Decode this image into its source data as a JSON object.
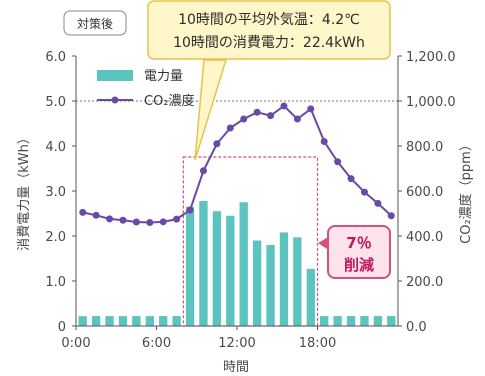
{
  "period_label": "対策後",
  "callout": {
    "line1": "10時間の平均外気温：4.2℃",
    "line2": "10時間の消費電力：22.4kWh"
  },
  "reduction": {
    "line1": "7％",
    "line2": "削減"
  },
  "colors": {
    "bar": "#5bc4bf",
    "line": "#6a4aa6",
    "highlight": "#d4517a",
    "callout_fill": "#fff6c9",
    "callout_border": "#e7c34b",
    "reduction_fill": "#fde4ec",
    "reduction_border": "#d4517a",
    "axis": "#555555",
    "refline": "#777777"
  },
  "chart_data": {
    "type": "bar+line",
    "xlabel": "時間",
    "ylabel_left": "消費電力量（kWh）",
    "ylabel_right": "CO₂濃度（ppm）",
    "ylim_left": [
      0,
      6.0
    ],
    "ylim_right": [
      0,
      1200
    ],
    "left_ticks": [
      "0",
      "1.0",
      "2.0",
      "3.0",
      "4.0",
      "5.0",
      "6.0"
    ],
    "right_ticks": [
      "0.0",
      "200.0",
      "400.0",
      "600.0",
      "800.0",
      "1,000.0",
      "1,200.0"
    ],
    "x_tick_labels": [
      "0:00",
      "6:00",
      "12:00",
      "18:00"
    ],
    "x_tick_hours": [
      0,
      6,
      12,
      18
    ],
    "x_range": [
      0,
      24
    ],
    "reference_line_right": 1000,
    "highlight_range_hours": [
      8,
      18
    ],
    "legend": [
      "電力量",
      "CO₂濃度"
    ],
    "series": [
      {
        "name": "電力量",
        "kind": "bar",
        "axis": "left",
        "hours": [
          0,
          1,
          2,
          3,
          4,
          5,
          6,
          7,
          8,
          9,
          10,
          11,
          12,
          13,
          14,
          15,
          16,
          17,
          18,
          19,
          20,
          21,
          22,
          23
        ],
        "values": [
          0.22,
          0.22,
          0.22,
          0.22,
          0.22,
          0.22,
          0.22,
          0.22,
          2.65,
          2.78,
          2.55,
          2.45,
          2.75,
          1.9,
          1.8,
          2.08,
          1.97,
          1.27,
          0.22,
          0.22,
          0.22,
          0.22,
          0.22,
          0.22
        ]
      },
      {
        "name": "CO₂濃度",
        "kind": "line",
        "axis": "right",
        "hours": [
          0.5,
          1.5,
          2.5,
          3.5,
          4.5,
          5.5,
          6.5,
          7.5,
          8.5,
          9.5,
          10.5,
          11.5,
          12.5,
          13.5,
          14.5,
          15.5,
          16.5,
          17.5,
          18.5,
          19.5,
          20.5,
          21.5,
          22.5,
          23.5
        ],
        "values": [
          505,
          492,
          476,
          470,
          462,
          460,
          463,
          475,
          515,
          690,
          810,
          880,
          920,
          950,
          935,
          978,
          920,
          965,
          820,
          730,
          655,
          595,
          545,
          490
        ]
      }
    ]
  }
}
